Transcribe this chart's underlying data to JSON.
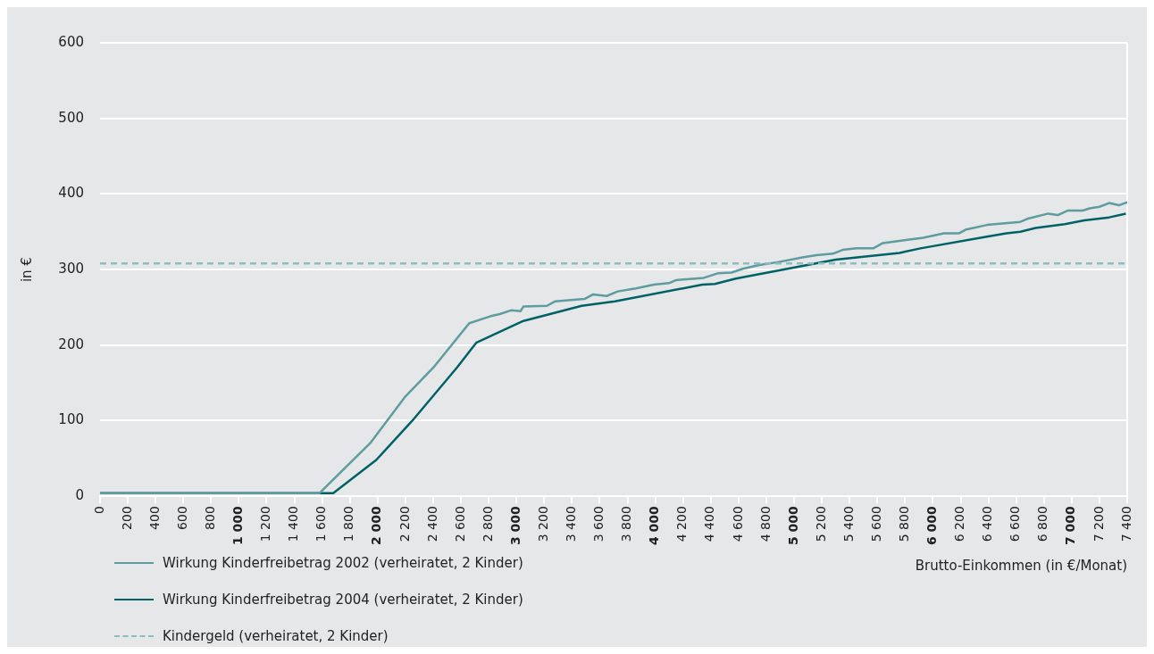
{
  "chart_data": {
    "type": "line",
    "xlabel": "Brutto-Einkommen (in €/Monat)",
    "ylabel": "in €",
    "xlim": [
      0,
      7400
    ],
    "xticks": [
      0,
      200,
      400,
      600,
      800,
      {
        "value": 1000,
        "label": "1 000"
      },
      {
        "value": 1200,
        "label": "1 200"
      },
      {
        "value": 1400,
        "label": "1 400"
      },
      {
        "value": 1600,
        "label": "1 600"
      },
      {
        "value": 1800,
        "label": "1 800"
      },
      {
        "value": 2000,
        "label": "2 000"
      },
      {
        "value": 2200,
        "label": "2 200"
      },
      {
        "value": 2400,
        "label": "2 400"
      },
      {
        "value": 2600,
        "label": "2 600"
      },
      {
        "value": 2800,
        "label": "2 800"
      },
      {
        "value": 3000,
        "label": "3 000"
      },
      {
        "value": 3200,
        "label": "3 200"
      },
      {
        "value": 3400,
        "label": "3 400"
      },
      {
        "value": 3600,
        "label": "3 600"
      },
      {
        "value": 3800,
        "label": "3 800"
      },
      {
        "value": 4000,
        "label": "4 000"
      },
      {
        "value": 4200,
        "label": "4 200"
      },
      {
        "value": 4400,
        "label": "4 400"
      },
      {
        "value": 4600,
        "label": "4 600"
      },
      {
        "value": 4800,
        "label": "4 800"
      },
      {
        "value": 5000,
        "label": "5 000"
      },
      {
        "value": 5200,
        "label": "5 200"
      },
      {
        "value": 5400,
        "label": "5 400"
      },
      {
        "value": 5600,
        "label": "5 600"
      },
      {
        "value": 5800,
        "label": "5 800"
      },
      {
        "value": 6000,
        "label": "6 000"
      },
      {
        "value": 6200,
        "label": "6 200"
      },
      {
        "value": 6400,
        "label": "6 400"
      },
      {
        "value": 6600,
        "label": "6 600"
      },
      {
        "value": 6800,
        "label": "6 800"
      },
      {
        "value": 7000,
        "label": "7 000"
      },
      {
        "value": 7200,
        "label": "7 200"
      },
      {
        "value": 7400,
        "label": "7 400"
      }
    ],
    "ylim": [
      0,
      600
    ],
    "yticks": [
      0,
      100,
      200,
      300,
      400,
      500,
      600
    ],
    "grid": "y",
    "legend": "bottom left",
    "marker": "none",
    "line_style": "solid",
    "series": [
      {
        "name": "Wirkung Kinderfreibetrag 2002 (verheiratet, 2 Kinder)",
        "color": "#5e9c9f",
        "x": [
          0,
          1580,
          1950,
          2200,
          2400,
          2660,
          2810,
          2880,
          2960,
          3030,
          3050,
          3220,
          3280,
          3490,
          3550,
          3650,
          3730,
          3860,
          3990,
          4100,
          4150,
          4350,
          4450,
          4550,
          4630,
          4750,
          4890,
          5060,
          5160,
          5280,
          5350,
          5450,
          5570,
          5640,
          5930,
          6080,
          6190,
          6240,
          6390,
          6630,
          6680,
          6830,
          6900,
          6970,
          7080,
          7130,
          7200,
          7270,
          7340,
          7400
        ],
        "values": [
          4,
          4,
          71,
          132,
          170,
          229,
          238,
          241,
          246,
          245,
          251,
          252,
          258,
          261,
          267,
          265,
          271,
          275,
          280,
          282,
          286,
          289,
          295,
          296,
          301,
          306,
          310,
          316,
          319,
          321,
          326,
          328,
          328,
          335,
          342,
          348,
          348,
          353,
          359,
          363,
          367,
          374,
          372,
          378,
          378,
          381,
          383,
          388,
          385,
          389
        ]
      },
      {
        "name": "Wirkung Kinderfreibetrag 2004 (verheiratet, 2 Kinder)",
        "color": "#006266",
        "x": [
          0,
          1680,
          1990,
          2250,
          2570,
          2710,
          3050,
          3470,
          3710,
          4340,
          4430,
          4580,
          5300,
          5760,
          5910,
          6370,
          6530,
          6630,
          6740,
          6950,
          7090,
          7270,
          7390
        ],
        "values": [
          4,
          4,
          48,
          100,
          170,
          203,
          232,
          252,
          258,
          280,
          281,
          288,
          313,
          322,
          328,
          343,
          348,
          350,
          355,
          360,
          365,
          369,
          374
        ]
      }
    ],
    "ref_lines": [
      {
        "axis": "y",
        "value": 308,
        "label": "Kindergeld (verheiratet, 2 Kinder)",
        "color": "#8fbcbe",
        "line_style": "dashed"
      }
    ]
  }
}
